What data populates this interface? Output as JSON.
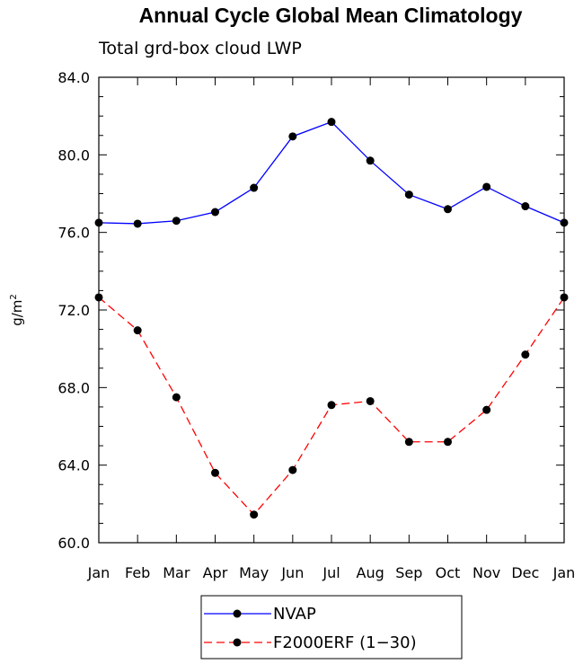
{
  "chart_data": {
    "type": "line",
    "title": "Annual Cycle Global Mean Climatology",
    "subtitle": "Total grd-box cloud LWP",
    "ylabel": "g/m",
    "ylabel_sup": "2",
    "xlabel": "",
    "categories": [
      "Jan",
      "Feb",
      "Mar",
      "Apr",
      "May",
      "Jun",
      "Jul",
      "Aug",
      "Sep",
      "Oct",
      "Nov",
      "Dec",
      "Jan"
    ],
    "ylim": [
      60,
      84
    ],
    "yticks": [
      60,
      64,
      68,
      72,
      76,
      80,
      84
    ],
    "ytick_labels": [
      "60.0",
      "64.0",
      "68.0",
      "72.0",
      "76.0",
      "80.0",
      "84.0"
    ],
    "series": [
      {
        "name": "NVAP",
        "color": "#0000ff",
        "dash": "solid",
        "values": [
          76.5,
          76.45,
          76.6,
          77.05,
          78.3,
          80.95,
          81.7,
          79.7,
          77.95,
          77.2,
          78.35,
          77.35,
          76.5
        ]
      },
      {
        "name": "F2000ERF (1−30)",
        "color": "#ff0000",
        "dash": "dashed",
        "values": [
          72.65,
          70.95,
          67.5,
          63.6,
          61.45,
          63.75,
          67.1,
          67.3,
          65.2,
          65.2,
          66.85,
          69.7,
          72.65
        ]
      }
    ],
    "legend_position": "bottom-center",
    "grid": false
  }
}
